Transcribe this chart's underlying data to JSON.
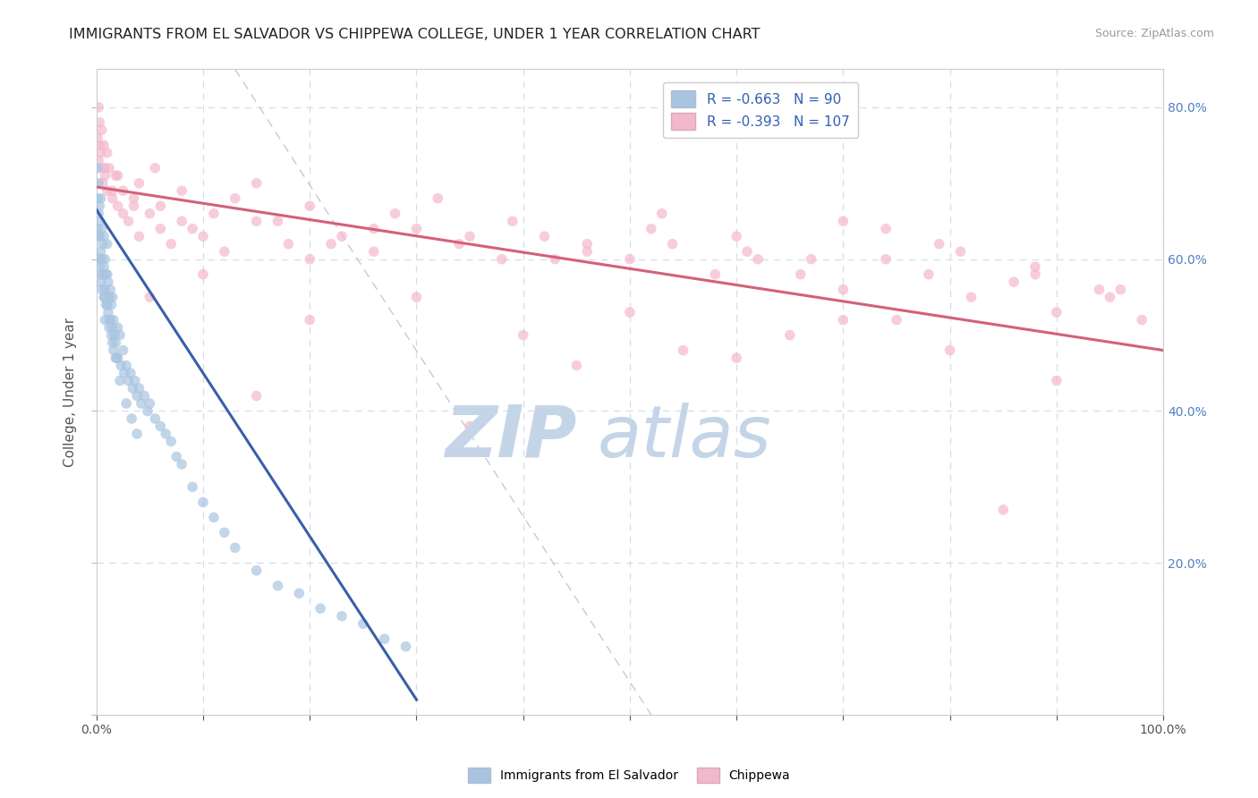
{
  "title": "IMMIGRANTS FROM EL SALVADOR VS CHIPPEWA COLLEGE, UNDER 1 YEAR CORRELATION CHART",
  "source": "Source: ZipAtlas.com",
  "ylabel": "College, Under 1 year",
  "xlim": [
    0.0,
    1.0
  ],
  "ylim": [
    0.0,
    0.85
  ],
  "legend_labels": [
    "Immigrants from El Salvador",
    "Chippewa"
  ],
  "R_blue": -0.663,
  "N_blue": 90,
  "R_pink": -0.393,
  "N_pink": 107,
  "blue_color": "#a8c4e0",
  "blue_line_color": "#3a5fa8",
  "pink_color": "#f4b8cc",
  "pink_line_color": "#d4607a",
  "scatter_alpha": 0.7,
  "marker_size": 70,
  "blue_scatter_x": [
    0.001,
    0.001,
    0.001,
    0.002,
    0.002,
    0.002,
    0.002,
    0.003,
    0.003,
    0.003,
    0.003,
    0.004,
    0.004,
    0.004,
    0.005,
    0.005,
    0.005,
    0.006,
    0.006,
    0.007,
    0.007,
    0.007,
    0.008,
    0.008,
    0.008,
    0.009,
    0.009,
    0.01,
    0.01,
    0.01,
    0.011,
    0.011,
    0.012,
    0.012,
    0.013,
    0.013,
    0.014,
    0.014,
    0.015,
    0.015,
    0.016,
    0.016,
    0.017,
    0.018,
    0.019,
    0.02,
    0.02,
    0.022,
    0.023,
    0.025,
    0.026,
    0.028,
    0.03,
    0.032,
    0.034,
    0.036,
    0.038,
    0.04,
    0.042,
    0.045,
    0.048,
    0.05,
    0.055,
    0.06,
    0.065,
    0.07,
    0.075,
    0.08,
    0.09,
    0.1,
    0.11,
    0.12,
    0.13,
    0.15,
    0.17,
    0.19,
    0.21,
    0.23,
    0.25,
    0.27,
    0.29,
    0.005,
    0.008,
    0.012,
    0.015,
    0.018,
    0.022,
    0.028,
    0.033,
    0.038
  ],
  "blue_scatter_y": [
    0.72,
    0.68,
    0.64,
    0.7,
    0.66,
    0.63,
    0.6,
    0.67,
    0.63,
    0.59,
    0.65,
    0.61,
    0.57,
    0.68,
    0.64,
    0.6,
    0.56,
    0.62,
    0.58,
    0.63,
    0.59,
    0.55,
    0.6,
    0.56,
    0.52,
    0.58,
    0.54,
    0.62,
    0.58,
    0.54,
    0.57,
    0.53,
    0.55,
    0.51,
    0.56,
    0.52,
    0.54,
    0.5,
    0.55,
    0.51,
    0.52,
    0.48,
    0.5,
    0.49,
    0.47,
    0.51,
    0.47,
    0.5,
    0.46,
    0.48,
    0.45,
    0.46,
    0.44,
    0.45,
    0.43,
    0.44,
    0.42,
    0.43,
    0.41,
    0.42,
    0.4,
    0.41,
    0.39,
    0.38,
    0.37,
    0.36,
    0.34,
    0.33,
    0.3,
    0.28,
    0.26,
    0.24,
    0.22,
    0.19,
    0.17,
    0.16,
    0.14,
    0.13,
    0.12,
    0.1,
    0.09,
    0.58,
    0.55,
    0.52,
    0.49,
    0.47,
    0.44,
    0.41,
    0.39,
    0.37
  ],
  "pink_scatter_x": [
    0.001,
    0.002,
    0.003,
    0.004,
    0.005,
    0.006,
    0.007,
    0.008,
    0.01,
    0.012,
    0.015,
    0.018,
    0.02,
    0.025,
    0.03,
    0.035,
    0.04,
    0.05,
    0.06,
    0.07,
    0.08,
    0.1,
    0.12,
    0.15,
    0.18,
    0.2,
    0.23,
    0.26,
    0.3,
    0.34,
    0.38,
    0.42,
    0.46,
    0.5,
    0.54,
    0.58,
    0.62,
    0.66,
    0.7,
    0.74,
    0.78,
    0.82,
    0.86,
    0.9,
    0.94,
    0.98,
    0.002,
    0.005,
    0.01,
    0.02,
    0.035,
    0.055,
    0.08,
    0.11,
    0.15,
    0.2,
    0.26,
    0.32,
    0.39,
    0.46,
    0.53,
    0.6,
    0.67,
    0.74,
    0.81,
    0.88,
    0.95,
    0.003,
    0.008,
    0.015,
    0.025,
    0.04,
    0.06,
    0.09,
    0.13,
    0.17,
    0.22,
    0.28,
    0.35,
    0.43,
    0.52,
    0.61,
    0.7,
    0.79,
    0.88,
    0.96,
    0.05,
    0.1,
    0.2,
    0.3,
    0.4,
    0.5,
    0.6,
    0.7,
    0.8,
    0.9,
    0.15,
    0.35,
    0.55,
    0.75,
    0.45,
    0.65,
    0.85
  ],
  "pink_scatter_y": [
    0.76,
    0.73,
    0.78,
    0.74,
    0.72,
    0.7,
    0.75,
    0.71,
    0.69,
    0.72,
    0.68,
    0.71,
    0.67,
    0.69,
    0.65,
    0.67,
    0.63,
    0.66,
    0.64,
    0.62,
    0.65,
    0.63,
    0.61,
    0.65,
    0.62,
    0.6,
    0.63,
    0.61,
    0.64,
    0.62,
    0.6,
    0.63,
    0.61,
    0.6,
    0.62,
    0.58,
    0.6,
    0.58,
    0.56,
    0.6,
    0.58,
    0.55,
    0.57,
    0.53,
    0.56,
    0.52,
    0.8,
    0.77,
    0.74,
    0.71,
    0.68,
    0.72,
    0.69,
    0.66,
    0.7,
    0.67,
    0.64,
    0.68,
    0.65,
    0.62,
    0.66,
    0.63,
    0.6,
    0.64,
    0.61,
    0.58,
    0.55,
    0.75,
    0.72,
    0.69,
    0.66,
    0.7,
    0.67,
    0.64,
    0.68,
    0.65,
    0.62,
    0.66,
    0.63,
    0.6,
    0.64,
    0.61,
    0.65,
    0.62,
    0.59,
    0.56,
    0.55,
    0.58,
    0.52,
    0.55,
    0.5,
    0.53,
    0.47,
    0.52,
    0.48,
    0.44,
    0.42,
    0.38,
    0.48,
    0.52,
    0.46,
    0.5,
    0.27
  ],
  "blue_trend_x": [
    0.0,
    0.3
  ],
  "blue_trend_y": [
    0.665,
    0.02
  ],
  "pink_trend_x": [
    0.0,
    1.0
  ],
  "pink_trend_y": [
    0.695,
    0.48
  ],
  "diag_line_x": [
    0.13,
    0.52
  ],
  "diag_line_y": [
    0.85,
    0.0
  ],
  "watermark_left": "ZIP",
  "watermark_right": "atlas",
  "watermark_color": "#c5d5e8",
  "grid_color": "#d5dded",
  "background_color": "#ffffff",
  "right_tick_color": "#5080c0",
  "left_tick_color": "#666666"
}
